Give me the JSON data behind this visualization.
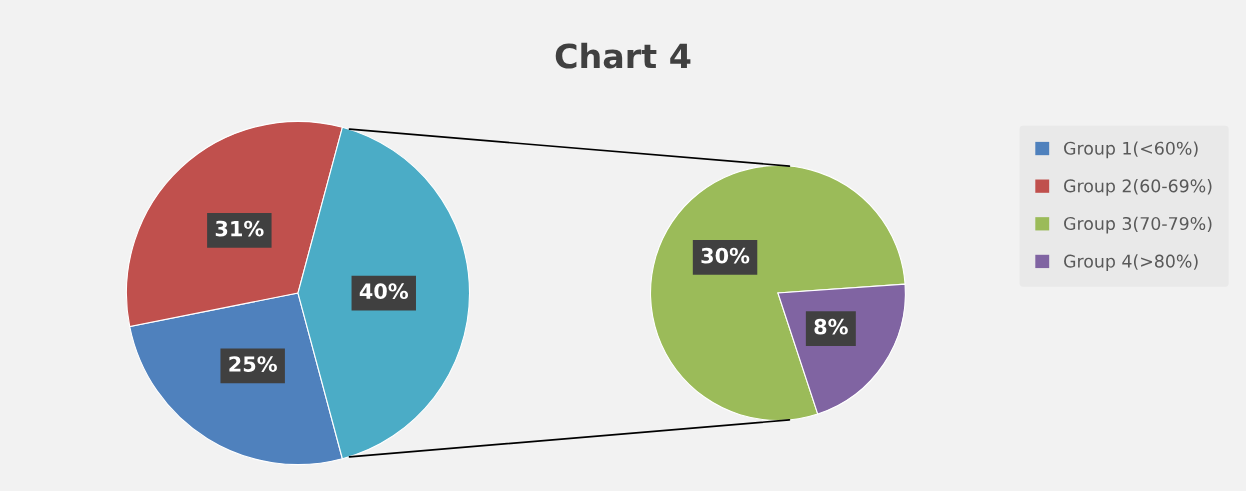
{
  "chart_data": [
    {
      "type": "pie",
      "title": "Chart 4",
      "categories": [
        "Group 1(<60%)",
        "Group 2(60-69%)",
        null
      ],
      "values": [
        25,
        31,
        40
      ],
      "colors": [
        "#4f81bd",
        "#c0504d",
        "#4bacc6"
      ],
      "value_labels": [
        "25%",
        "31%",
        "40%"
      ],
      "legend": "right"
    },
    {
      "type": "pie",
      "categories": [
        "Group 3(70-79%)",
        "Group 4(>80%)"
      ],
      "values": [
        30,
        8
      ],
      "colors": [
        "#9bbb59",
        "#8064a2"
      ],
      "value_labels": [
        "30%",
        "8%"
      ],
      "legend": "right"
    }
  ]
}
